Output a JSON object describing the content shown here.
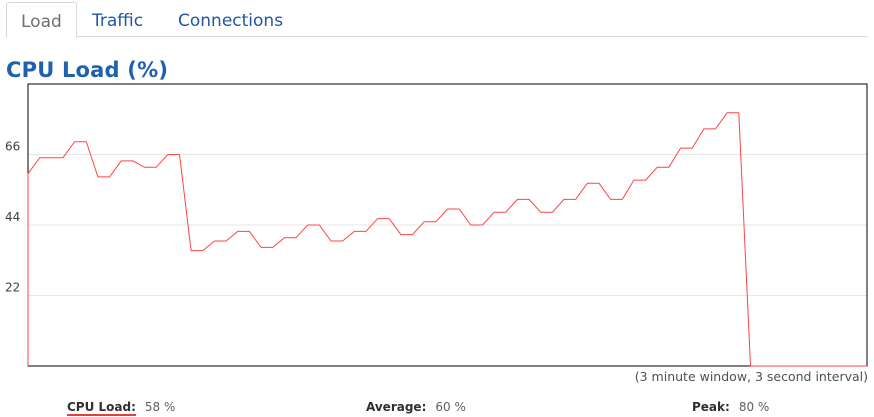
{
  "tabs": [
    {
      "label": "Load",
      "active": true
    },
    {
      "label": "Traffic",
      "active": false
    },
    {
      "label": "Connections",
      "active": false
    }
  ],
  "page_title": "CPU Load (%)",
  "chart_caption": "(3 minute window, 3 second interval)",
  "stats": {
    "cpu_label": "CPU Load:",
    "cpu_value": "58 %",
    "avg_label": "Average:",
    "avg_value": "60 %",
    "peak_label": "Peak:",
    "peak_value": "80 %"
  },
  "colors": {
    "line": "#ff4444",
    "title": "#2060b0",
    "tab_link": "#2255a4",
    "grid": "#e6e6e6",
    "border": "#000000"
  },
  "chart_data": {
    "type": "line",
    "title": "CPU Load (%)",
    "xlabel": "",
    "ylabel": "",
    "y_ticks": [
      "66",
      "44",
      "22"
    ],
    "ylim": [
      0,
      88
    ],
    "grid": true,
    "series": [
      {
        "values": [
          60,
          65,
          65,
          65,
          70,
          70,
          59,
          59,
          64,
          64,
          62,
          62,
          66,
          66,
          36,
          36,
          39,
          39,
          42,
          42,
          37,
          37,
          40,
          40,
          44,
          44,
          39,
          39,
          42,
          42,
          46,
          46,
          41,
          41,
          45,
          45,
          49,
          49,
          44,
          44,
          48,
          48,
          52,
          52,
          48,
          48,
          52,
          52,
          57,
          57,
          52,
          52,
          58,
          58,
          62,
          62,
          68,
          68,
          74,
          74,
          79,
          79,
          0,
          0,
          0,
          0,
          0,
          0,
          0,
          0,
          0,
          0,
          0
        ]
      }
    ]
  }
}
